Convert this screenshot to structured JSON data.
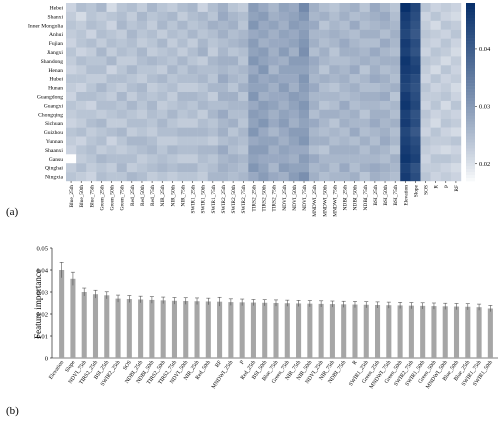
{
  "panel_labels": [
    "(a)",
    "(b)"
  ],
  "chart_data": [
    {
      "type": "heatmap",
      "title": "",
      "rows": [
        "Hebei",
        "Shanxi",
        "Inner Mongolia",
        "Anhui",
        "Fujian",
        "Jiangxi",
        "Shandong",
        "Henan",
        "Hubei",
        "Hunan",
        "Guangdong",
        "Guangxi",
        "Chongqing",
        "Sichuan",
        "Guizhou",
        "Yunnan",
        "Shaanxi",
        "Gansu",
        "Qinghai",
        "Ningxia"
      ],
      "columns": [
        "Blue_25th",
        "Blue_50th",
        "Blue_75th",
        "Green_25th",
        "Green_50th",
        "Green_75th",
        "Red_25th",
        "Red_50th",
        "Red_75th",
        "NIR_25th",
        "NIR_50th",
        "NIR_75th",
        "SWIR1_25th",
        "SWIR1_50th",
        "SWIR1_75th",
        "SWIR2_25th",
        "SWIR2_50th",
        "SWIR2_75th",
        "TIRS2_25th",
        "TIRS2_50th",
        "TIRS2_75th",
        "NDVI_25th",
        "NDVI_50th",
        "NDVI_75th",
        "MNDWI_25th",
        "MNDWI_50th",
        "MNDWI_75th",
        "NDBI_25th",
        "NDBI_50th",
        "NDBI_75th",
        "BSI_25th",
        "BSI_50th",
        "BSI_75th",
        "Elevation",
        "Slope",
        "SOS",
        "R",
        "P",
        "RF"
      ],
      "colorbar": {
        "min": 0.017,
        "max": 0.048,
        "ticks": [
          0.02,
          0.03,
          0.04
        ],
        "low_color": "#ffffff",
        "high_color": "#08306b"
      },
      "values": [
        [
          0.022,
          0.025,
          0.024,
          0.026,
          0.021,
          0.024,
          0.025,
          0.023,
          0.026,
          0.024,
          0.023,
          0.025,
          0.026,
          0.022,
          0.025,
          0.027,
          0.024,
          0.023,
          0.03,
          0.028,
          0.026,
          0.029,
          0.028,
          0.033,
          0.027,
          0.025,
          0.024,
          0.026,
          0.027,
          0.024,
          0.028,
          0.026,
          0.024,
          0.048,
          0.044,
          0.024,
          0.022,
          0.023,
          0.022
        ],
        [
          0.023,
          0.021,
          0.024,
          0.023,
          0.024,
          0.025,
          0.023,
          0.026,
          0.024,
          0.025,
          0.026,
          0.023,
          0.025,
          0.026,
          0.024,
          0.028,
          0.026,
          0.025,
          0.029,
          0.03,
          0.027,
          0.028,
          0.029,
          0.031,
          0.026,
          0.027,
          0.025,
          0.027,
          0.025,
          0.026,
          0.027,
          0.028,
          0.025,
          0.046,
          0.043,
          0.022,
          0.024,
          0.022,
          0.021
        ],
        [
          0.024,
          0.023,
          0.025,
          0.024,
          0.022,
          0.026,
          0.024,
          0.025,
          0.023,
          0.026,
          0.024,
          0.026,
          0.024,
          0.025,
          0.027,
          0.026,
          0.027,
          0.024,
          0.031,
          0.028,
          0.029,
          0.027,
          0.03,
          0.029,
          0.028,
          0.024,
          0.026,
          0.025,
          0.028,
          0.025,
          0.026,
          0.027,
          0.026,
          0.045,
          0.042,
          0.023,
          0.021,
          0.024,
          0.023
        ],
        [
          0.023,
          0.024,
          0.022,
          0.025,
          0.024,
          0.023,
          0.026,
          0.024,
          0.025,
          0.023,
          0.025,
          0.024,
          0.026,
          0.024,
          0.025,
          0.027,
          0.025,
          0.026,
          0.028,
          0.029,
          0.027,
          0.029,
          0.028,
          0.03,
          0.026,
          0.026,
          0.027,
          0.026,
          0.025,
          0.027,
          0.027,
          0.025,
          0.027,
          0.044,
          0.041,
          0.024,
          0.023,
          0.022,
          0.024
        ],
        [
          0.022,
          0.024,
          0.025,
          0.023,
          0.025,
          0.024,
          0.025,
          0.023,
          0.024,
          0.026,
          0.023,
          0.025,
          0.023,
          0.026,
          0.024,
          0.025,
          0.026,
          0.027,
          0.03,
          0.027,
          0.028,
          0.028,
          0.029,
          0.031,
          0.027,
          0.025,
          0.026,
          0.028,
          0.026,
          0.025,
          0.025,
          0.028,
          0.026,
          0.046,
          0.043,
          0.023,
          0.022,
          0.024,
          0.022
        ],
        [
          0.024,
          0.022,
          0.023,
          0.026,
          0.023,
          0.025,
          0.024,
          0.026,
          0.023,
          0.024,
          0.025,
          0.023,
          0.025,
          0.027,
          0.023,
          0.026,
          0.024,
          0.025,
          0.029,
          0.03,
          0.027,
          0.03,
          0.027,
          0.032,
          0.025,
          0.027,
          0.024,
          0.027,
          0.027,
          0.026,
          0.028,
          0.026,
          0.025,
          0.045,
          0.042,
          0.022,
          0.024,
          0.023,
          0.021
        ],
        [
          0.023,
          0.025,
          0.024,
          0.024,
          0.026,
          0.023,
          0.023,
          0.025,
          0.026,
          0.025,
          0.024,
          0.026,
          0.024,
          0.023,
          0.026,
          0.027,
          0.027,
          0.024,
          0.031,
          0.029,
          0.028,
          0.027,
          0.03,
          0.03,
          0.028,
          0.026,
          0.025,
          0.025,
          0.026,
          0.027,
          0.026,
          0.027,
          0.027,
          0.047,
          0.044,
          0.024,
          0.023,
          0.021,
          0.023
        ],
        [
          0.022,
          0.023,
          0.025,
          0.025,
          0.022,
          0.024,
          0.026,
          0.024,
          0.024,
          0.023,
          0.026,
          0.024,
          0.026,
          0.025,
          0.025,
          0.026,
          0.025,
          0.026,
          0.028,
          0.031,
          0.026,
          0.029,
          0.029,
          0.029,
          0.027,
          0.024,
          0.027,
          0.026,
          0.028,
          0.024,
          0.027,
          0.025,
          0.026,
          0.046,
          0.045,
          0.023,
          0.021,
          0.024,
          0.022
        ],
        [
          0.024,
          0.024,
          0.023,
          0.023,
          0.025,
          0.025,
          0.024,
          0.023,
          0.025,
          0.026,
          0.024,
          0.025,
          0.025,
          0.026,
          0.024,
          0.028,
          0.026,
          0.025,
          0.03,
          0.028,
          0.029,
          0.028,
          0.028,
          0.031,
          0.026,
          0.027,
          0.026,
          0.027,
          0.025,
          0.026,
          0.028,
          0.027,
          0.025,
          0.045,
          0.043,
          0.022,
          0.024,
          0.022,
          0.023
        ],
        [
          0.023,
          0.022,
          0.024,
          0.026,
          0.024,
          0.023,
          0.025,
          0.026,
          0.023,
          0.024,
          0.025,
          0.023,
          0.023,
          0.024,
          0.026,
          0.026,
          0.024,
          0.027,
          0.029,
          0.029,
          0.027,
          0.03,
          0.027,
          0.03,
          0.028,
          0.025,
          0.024,
          0.026,
          0.027,
          0.025,
          0.025,
          0.026,
          0.027,
          0.044,
          0.042,
          0.024,
          0.022,
          0.023,
          0.021
        ],
        [
          0.022,
          0.025,
          0.025,
          0.024,
          0.023,
          0.026,
          0.023,
          0.025,
          0.024,
          0.025,
          0.023,
          0.026,
          0.026,
          0.025,
          0.023,
          0.027,
          0.027,
          0.024,
          0.031,
          0.027,
          0.028,
          0.028,
          0.03,
          0.029,
          0.026,
          0.026,
          0.026,
          0.025,
          0.026,
          0.027,
          0.027,
          0.028,
          0.024,
          0.046,
          0.043,
          0.023,
          0.023,
          0.024,
          0.022
        ],
        [
          0.024,
          0.023,
          0.022,
          0.025,
          0.025,
          0.024,
          0.026,
          0.024,
          0.026,
          0.023,
          0.024,
          0.025,
          0.024,
          0.026,
          0.025,
          0.025,
          0.026,
          0.026,
          0.028,
          0.03,
          0.029,
          0.027,
          0.029,
          0.031,
          0.027,
          0.024,
          0.025,
          0.028,
          0.025,
          0.026,
          0.026,
          0.025,
          0.026,
          0.047,
          0.044,
          0.022,
          0.024,
          0.021,
          0.024
        ],
        [
          0.023,
          0.024,
          0.024,
          0.023,
          0.024,
          0.025,
          0.024,
          0.023,
          0.025,
          0.024,
          0.026,
          0.024,
          0.025,
          0.023,
          0.026,
          0.028,
          0.025,
          0.025,
          0.03,
          0.029,
          0.027,
          0.029,
          0.028,
          0.03,
          0.025,
          0.027,
          0.027,
          0.026,
          0.027,
          0.024,
          0.027,
          0.027,
          0.025,
          0.045,
          0.042,
          0.024,
          0.022,
          0.023,
          0.022
        ],
        [
          0.022,
          0.023,
          0.025,
          0.026,
          0.023,
          0.023,
          0.025,
          0.025,
          0.024,
          0.026,
          0.024,
          0.023,
          0.023,
          0.025,
          0.024,
          0.026,
          0.027,
          0.024,
          0.029,
          0.031,
          0.028,
          0.03,
          0.027,
          0.029,
          0.028,
          0.026,
          0.024,
          0.027,
          0.026,
          0.026,
          0.028,
          0.026,
          0.027,
          0.046,
          0.043,
          0.023,
          0.021,
          0.024,
          0.023
        ],
        [
          0.024,
          0.025,
          0.023,
          0.024,
          0.025,
          0.026,
          0.023,
          0.024,
          0.023,
          0.025,
          0.025,
          0.026,
          0.026,
          0.026,
          0.025,
          0.027,
          0.024,
          0.026,
          0.031,
          0.028,
          0.026,
          0.028,
          0.03,
          0.03,
          0.026,
          0.025,
          0.026,
          0.025,
          0.028,
          0.025,
          0.026,
          0.027,
          0.025,
          0.044,
          0.041,
          0.022,
          0.024,
          0.022,
          0.021
        ],
        [
          0.023,
          0.022,
          0.024,
          0.025,
          0.022,
          0.024,
          0.026,
          0.026,
          0.025,
          0.023,
          0.023,
          0.024,
          0.024,
          0.024,
          0.023,
          0.025,
          0.026,
          0.025,
          0.028,
          0.029,
          0.029,
          0.027,
          0.029,
          0.031,
          0.027,
          0.027,
          0.025,
          0.026,
          0.025,
          0.027,
          0.025,
          0.028,
          0.026,
          0.045,
          0.043,
          0.024,
          0.023,
          0.023,
          0.024
        ],
        [
          0.022,
          0.024,
          0.025,
          0.023,
          0.024,
          0.023,
          0.024,
          0.025,
          0.026,
          0.024,
          0.026,
          0.025,
          0.025,
          0.026,
          0.026,
          0.028,
          0.025,
          0.024,
          0.03,
          0.03,
          0.027,
          0.029,
          0.028,
          0.028,
          0.025,
          0.024,
          0.027,
          0.027,
          0.027,
          0.025,
          0.027,
          0.026,
          0.024,
          0.046,
          0.044,
          0.023,
          0.022,
          0.021,
          0.022
        ],
        [
          0.017,
          0.023,
          0.024,
          0.026,
          0.025,
          0.025,
          0.025,
          0.023,
          0.024,
          0.025,
          0.024,
          0.023,
          0.023,
          0.025,
          0.024,
          0.026,
          0.027,
          0.026,
          0.029,
          0.028,
          0.028,
          0.028,
          0.027,
          0.03,
          0.028,
          0.026,
          0.026,
          0.026,
          0.026,
          0.026,
          0.026,
          0.025,
          0.027,
          0.047,
          0.045,
          0.022,
          0.024,
          0.024,
          0.023
        ],
        [
          0.023,
          0.025,
          0.023,
          0.024,
          0.023,
          0.026,
          0.023,
          0.024,
          0.025,
          0.026,
          0.025,
          0.026,
          0.026,
          0.024,
          0.025,
          0.027,
          0.026,
          0.025,
          0.031,
          0.029,
          0.026,
          0.03,
          0.029,
          0.029,
          0.026,
          0.027,
          0.025,
          0.028,
          0.025,
          0.027,
          0.028,
          0.027,
          0.026,
          0.045,
          0.042,
          0.023,
          0.023,
          0.022,
          0.021
        ],
        [
          0.024,
          0.023,
          0.022,
          0.025,
          0.024,
          0.024,
          0.026,
          0.025,
          0.023,
          0.024,
          0.023,
          0.024,
          0.024,
          0.023,
          0.026,
          0.026,
          0.025,
          0.026,
          0.028,
          0.03,
          0.028,
          0.027,
          0.03,
          0.032,
          0.027,
          0.025,
          0.026,
          0.026,
          0.027,
          0.024,
          0.027,
          0.026,
          0.025,
          0.046,
          0.043,
          0.024,
          0.022,
          0.023,
          0.022
        ]
      ]
    },
    {
      "type": "bar",
      "title": "",
      "xlabel": "",
      "ylabel": "Feature importance",
      "ylim": [
        0,
        0.05
      ],
      "yticks": [
        "0",
        "0.01",
        "0.02",
        "0.03",
        "0.04",
        "0.05"
      ],
      "bar_color": "#a6a6a6",
      "categories": [
        "Elevation",
        "Slope",
        "NDVI_75th",
        "TIRS2_25th",
        "BSI_25th",
        "SWIR2_25th",
        "SOS",
        "NDBI_25th",
        "NDBI_50th",
        "TIRS2_50th",
        "TIRS2_75th",
        "NDVI_50th",
        "NIR_25th",
        "Red_50th",
        "RF",
        "MNDWI_25th",
        "P",
        "Red_25th",
        "BSI_50th",
        "Blue_75th",
        "Green_75th",
        "NIR_75th",
        "NIR_50th",
        "NDVI_25th",
        "NIR_75th",
        "NDBI_75th",
        "R",
        "SWIR1_25th",
        "Green_25th",
        "MNDWI_75th",
        "Green_50th",
        "SWIR2_75th",
        "SWIR1_50th",
        "Green_50th",
        "MNDWI_50th",
        "Blue_50th",
        "Blue_25th",
        "SWIR1_75th",
        "SWIR1_50th"
      ],
      "values": [
        0.04,
        0.036,
        0.03,
        0.029,
        0.0285,
        0.027,
        0.0268,
        0.0266,
        0.0264,
        0.0262,
        0.026,
        0.0259,
        0.0258,
        0.0257,
        0.0256,
        0.0254,
        0.0253,
        0.0252,
        0.0251,
        0.025,
        0.0249,
        0.0248,
        0.0247,
        0.0246,
        0.0245,
        0.0244,
        0.0243,
        0.0242,
        0.0241,
        0.024,
        0.0239,
        0.0238,
        0.0237,
        0.0236,
        0.0235,
        0.0234,
        0.0233,
        0.0231,
        0.0225
      ],
      "errors": [
        0.0035,
        0.003,
        0.0018,
        0.0018,
        0.0016,
        0.0016,
        0.0016,
        0.0015,
        0.0015,
        0.0015,
        0.0015,
        0.0015,
        0.0015,
        0.0015,
        0.002,
        0.0015,
        0.0015,
        0.0014,
        0.0014,
        0.0014,
        0.0014,
        0.0014,
        0.0014,
        0.0014,
        0.0014,
        0.0014,
        0.0014,
        0.0014,
        0.0014,
        0.0014,
        0.0014,
        0.0014,
        0.0014,
        0.0014,
        0.0014,
        0.0014,
        0.0014,
        0.0014,
        0.0014
      ]
    }
  ]
}
